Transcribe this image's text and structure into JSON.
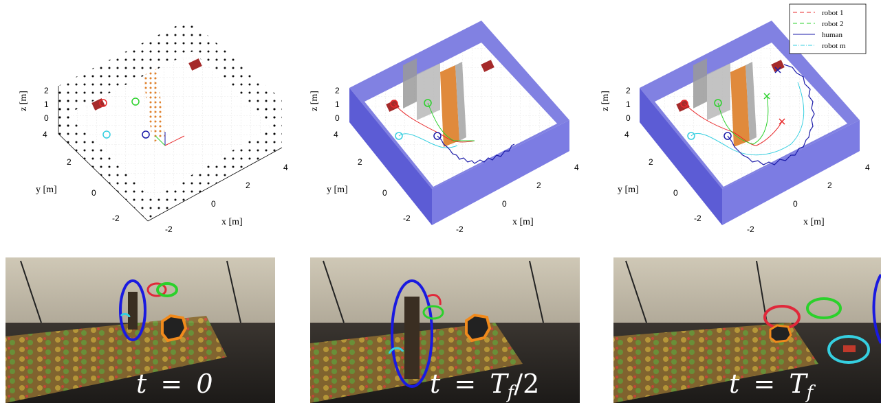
{
  "plots": [
    {
      "x_label": "x [m]",
      "y_label": "y [m]",
      "z_label": "z [m]",
      "x_ticks": [
        "-2",
        "0",
        "2",
        "4"
      ],
      "y_ticks": [
        "-2",
        "0",
        "2",
        "4"
      ],
      "z_ticks": [
        "0",
        "1",
        "2"
      ]
    },
    {
      "x_label": "x [m]",
      "y_label": "y [m]",
      "z_label": "z [m]",
      "x_ticks": [
        "-2",
        "0",
        "2",
        "4"
      ],
      "y_ticks": [
        "-2",
        "0",
        "2",
        "4"
      ],
      "z_ticks": [
        "0",
        "1",
        "2"
      ]
    },
    {
      "x_label": "x [m]",
      "y_label": "y [m]",
      "z_label": "z [m]",
      "x_ticks": [
        "-2",
        "0",
        "2",
        "4"
      ],
      "y_ticks": [
        "-2",
        "0",
        "2",
        "4"
      ],
      "z_ticks": [
        "0",
        "1",
        "2"
      ]
    }
  ],
  "legend": {
    "items": [
      {
        "label": "robot 1",
        "color": "#e8292b",
        "style": "dashed"
      },
      {
        "label": "robot 2",
        "color": "#2bd12b",
        "style": "dashed"
      },
      {
        "label": "human",
        "color": "#1a1aa8",
        "style": "solid"
      },
      {
        "label": "robot m",
        "color": "#35cfe0",
        "style": "dashdot"
      }
    ]
  },
  "photos": [
    {
      "caption_t": "t",
      "caption_eq": "=",
      "caption_val": "0"
    },
    {
      "caption_t": "t",
      "caption_eq": "=",
      "caption_val": "T",
      "caption_sub": "f",
      "caption_suffix": "/2"
    },
    {
      "caption_t": "t",
      "caption_eq": "=",
      "caption_val": "T",
      "caption_sub": "f",
      "caption_suffix": ""
    }
  ],
  "colors": {
    "wall": "#7a7ae0",
    "wall_dark": "#4a4ad0",
    "panel": "#e08a3c",
    "goal": "#a52a2a",
    "robot1": "#e8292b",
    "robot2": "#2bd12b",
    "human": "#1a1aa8",
    "robotm": "#35cfe0"
  }
}
